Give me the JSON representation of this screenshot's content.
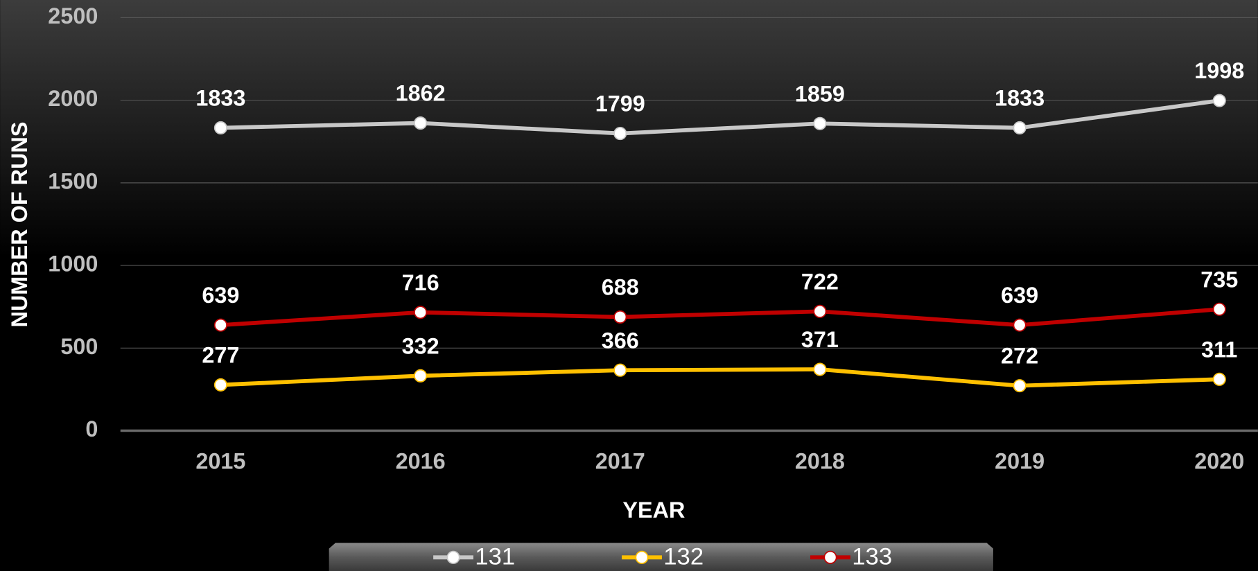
{
  "chart_data": {
    "type": "line",
    "x_label": "YEAR",
    "y_label": "NUMBER OF RUNS",
    "categories": [
      "2015",
      "2016",
      "2017",
      "2018",
      "2019",
      "2020"
    ],
    "series": [
      {
        "name": "131",
        "color": "#c8c8c8",
        "values": [
          1833,
          1862,
          1799,
          1859,
          1833,
          1998
        ]
      },
      {
        "name": "132",
        "color": "#ffc000",
        "values": [
          277,
          332,
          366,
          371,
          272,
          311
        ]
      },
      {
        "name": "133",
        "color": "#c00000",
        "values": [
          639,
          716,
          688,
          722,
          639,
          735
        ]
      }
    ],
    "ylim": [
      0,
      2500
    ],
    "yticks": [
      0,
      500,
      1000,
      1500,
      2000,
      2500
    ],
    "grid": true,
    "legend": "bottom"
  }
}
